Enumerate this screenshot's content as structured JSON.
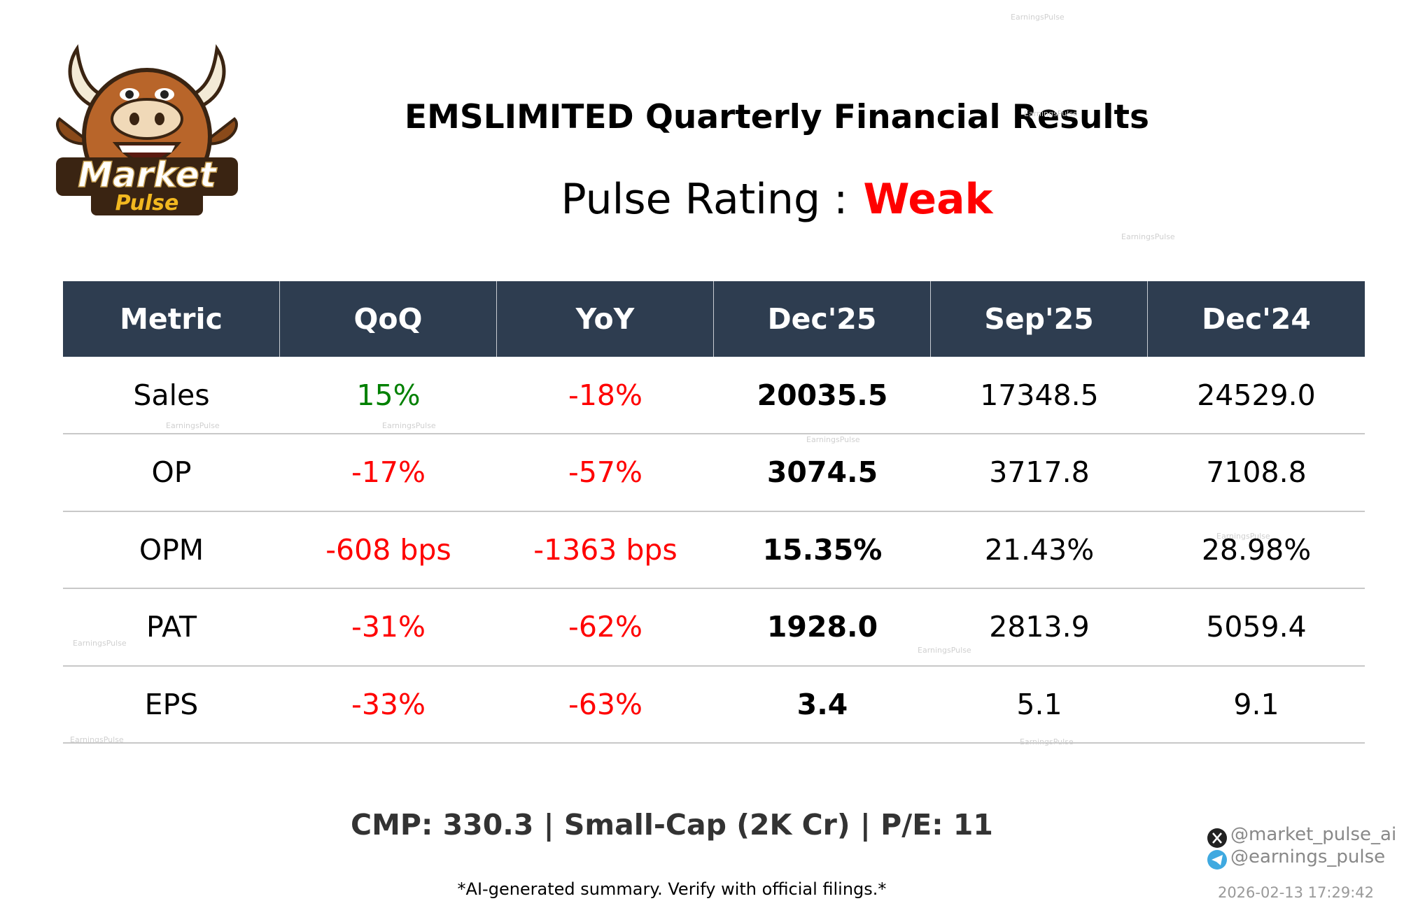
{
  "logo": {
    "line1": "Market",
    "line2": "Pulse"
  },
  "header": {
    "title": "EMSLIMITED Quarterly Financial Results",
    "rating_label": "Pulse Rating :",
    "rating": "Weak"
  },
  "table": {
    "columns": [
      "Metric",
      "QoQ",
      "YoY",
      "Dec'25",
      "Sep'25",
      "Dec'24"
    ],
    "rows": [
      [
        "Sales",
        "15%",
        "-18%",
        "20035.5",
        "17348.5",
        "24529.0"
      ],
      [
        "OP",
        "-17%",
        "-57%",
        "3074.5",
        "3717.8",
        "7108.8"
      ],
      [
        "OPM",
        "-608 bps",
        "-1363 bps",
        "15.35%",
        "21.43%",
        "28.98%"
      ],
      [
        "PAT",
        "-31%",
        "-62%",
        "1928.0",
        "2813.9",
        "5059.4"
      ],
      [
        "EPS",
        "-33%",
        "-63%",
        "3.4",
        "5.1",
        "9.1"
      ]
    ]
  },
  "footer": {
    "summary": "CMP: 330.3 | Small-Cap (2K Cr) | P/E: 11",
    "disclaimer": "*AI-generated summary. Verify with official filings.*",
    "twitter": "@market_pulse_ai",
    "telegram": "@earnings_pulse",
    "timestamp": "2026-02-13 17:29:42"
  },
  "watermarks": [
    "EarningsPulse",
    "EarningsPulse",
    "EarningsPulse",
    "EarningsPulse",
    "EarningsPulse",
    "EarningsPulse",
    "EarningsPulse",
    "EarningsPulse",
    "EarningsPulse",
    "EarningsPulse",
    "EarningsPulse"
  ]
}
